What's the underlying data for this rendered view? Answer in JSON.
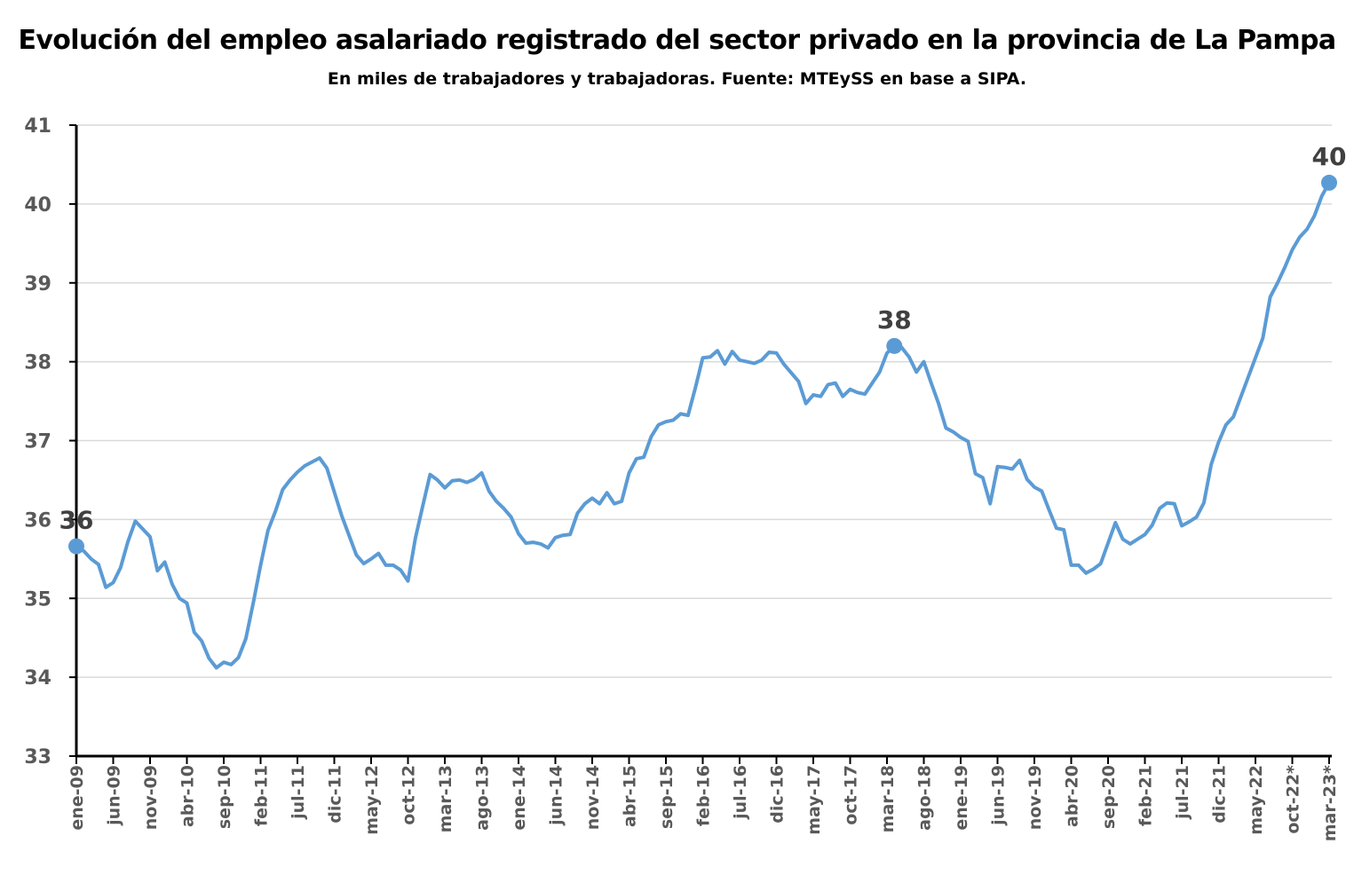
{
  "chart_data": {
    "type": "line",
    "title": "Evolución del empleo asalariado registrado del sector privado en la provincia de La Pampa",
    "subtitle": "En miles de trabajadores y trabajadoras. Fuente: MTEySS en base a SIPA.",
    "xlabel": "",
    "ylabel": "",
    "ylim": [
      33,
      41
    ],
    "yticks": [
      33,
      34,
      35,
      36,
      37,
      38,
      39,
      40,
      41
    ],
    "grid": true,
    "legend": "none",
    "x_tick_labels": [
      "ene-09",
      "jun-09",
      "nov-09",
      "abr-10",
      "sep-10",
      "feb-11",
      "jul-11",
      "dic-11",
      "may-12",
      "oct-12",
      "mar-13",
      "ago-13",
      "ene-14",
      "jun-14",
      "nov-14",
      "abr-15",
      "sep-15",
      "feb-16",
      "jul-16",
      "dic-16",
      "may-17",
      "oct-17",
      "mar-18",
      "ago-18",
      "ene-19",
      "jun-19",
      "nov-19",
      "abr-20",
      "sep-20",
      "feb-21",
      "jul-21",
      "dic-21",
      "may-22",
      "oct-22*",
      "mar-23*"
    ],
    "x_tick_every_months": 5,
    "series": [
      {
        "name": "Empleo asalariado registrado privado",
        "color": "#5B9BD5",
        "values": [
          35.66,
          35.6,
          35.5,
          35.43,
          35.14,
          35.2,
          35.39,
          35.72,
          35.98,
          35.88,
          35.78,
          35.35,
          35.46,
          35.18,
          35.0,
          34.94,
          34.57,
          34.46,
          34.24,
          34.12,
          34.19,
          34.16,
          34.25,
          34.49,
          34.94,
          35.42,
          35.86,
          36.1,
          36.38,
          36.5,
          36.6,
          36.68,
          36.73,
          36.78,
          36.65,
          36.35,
          36.05,
          35.8,
          35.55,
          35.44,
          35.5,
          35.57,
          35.42,
          35.42,
          35.36,
          35.22,
          35.76,
          36.17,
          36.57,
          36.5,
          36.4,
          36.49,
          36.5,
          36.47,
          36.51,
          36.59,
          36.36,
          36.23,
          36.14,
          36.03,
          35.82,
          35.7,
          35.71,
          35.69,
          35.64,
          35.77,
          35.8,
          35.81,
          36.08,
          36.2,
          36.27,
          36.2,
          36.34,
          36.2,
          36.23,
          36.59,
          36.77,
          36.79,
          37.05,
          37.2,
          37.24,
          37.26,
          37.34,
          37.32,
          37.67,
          38.05,
          38.06,
          38.14,
          37.97,
          38.13,
          38.02,
          38.0,
          37.98,
          38.02,
          38.12,
          38.11,
          37.97,
          37.86,
          37.75,
          37.47,
          37.58,
          37.56,
          37.71,
          37.73,
          37.56,
          37.65,
          37.61,
          37.59,
          37.73,
          37.87,
          38.11,
          38.2,
          38.18,
          38.06,
          37.87,
          38.0,
          37.73,
          37.47,
          37.16,
          37.11,
          37.04,
          36.99,
          36.58,
          36.53,
          36.2,
          36.67,
          36.66,
          36.64,
          36.75,
          36.51,
          36.41,
          36.36,
          36.12,
          35.89,
          35.87,
          35.42,
          35.42,
          35.32,
          35.37,
          35.44,
          35.7,
          35.96,
          35.75,
          35.69,
          35.75,
          35.81,
          35.93,
          36.14,
          36.21,
          36.2,
          35.92,
          35.97,
          36.03,
          36.21,
          36.7,
          36.98,
          37.2,
          37.3,
          37.55,
          37.8,
          38.05,
          38.3,
          38.82,
          39.0,
          39.2,
          39.42,
          39.58,
          39.68,
          39.85,
          40.1,
          40.27
        ]
      }
    ],
    "data_labels": [
      {
        "index": 0,
        "text": "36"
      },
      {
        "index": 111,
        "text": "38"
      },
      {
        "index": 170,
        "text": "40"
      }
    ]
  }
}
